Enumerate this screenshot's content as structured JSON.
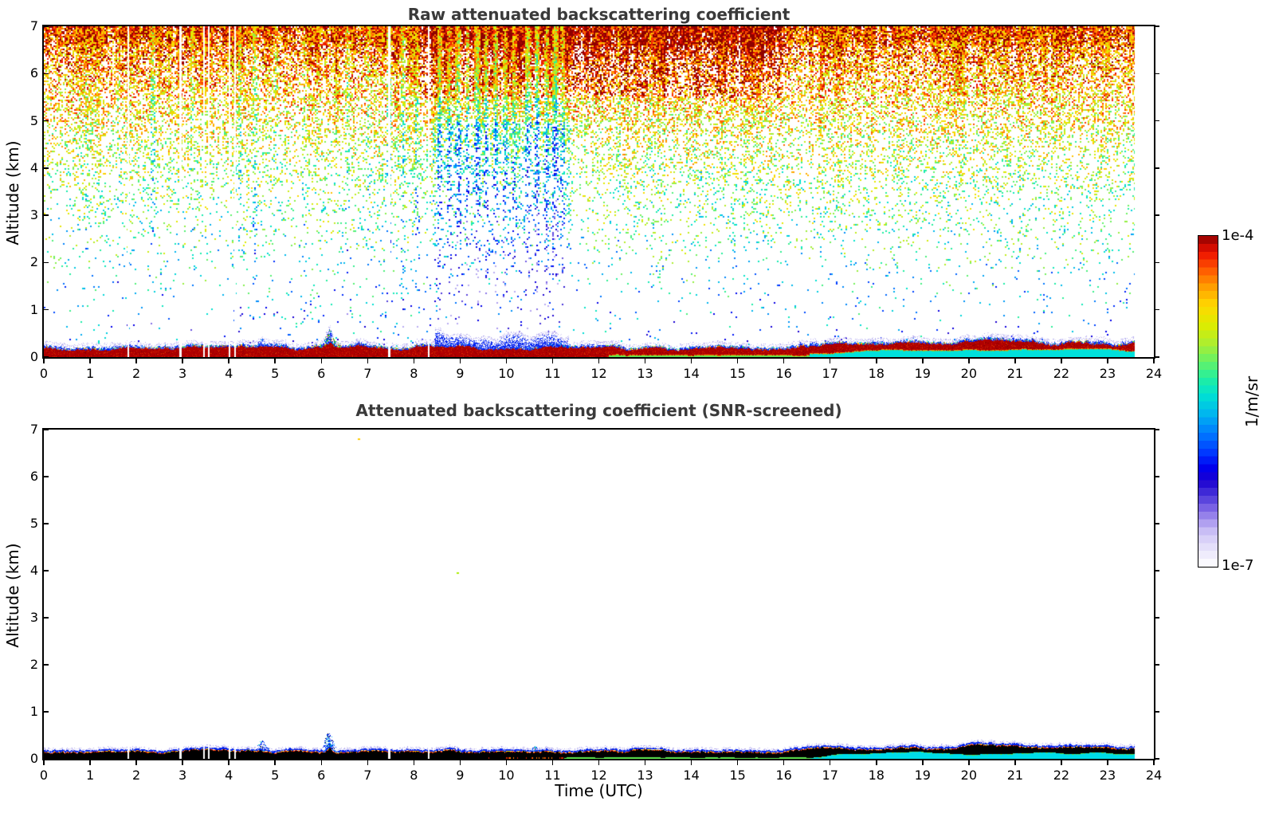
{
  "figure": {
    "background": "#ffffff",
    "title_color": "#3a3a3a",
    "panels": [
      {
        "id": "raw",
        "title": "Raw attenuated backscattering coefficient",
        "ylabel": "Altitude (km)",
        "xlabel": "",
        "x_tick_labels": [
          "0",
          "1",
          "2",
          "3",
          "4",
          "5",
          "6",
          "7",
          "8",
          "9",
          "10",
          "11",
          "12",
          "13",
          "14",
          "15",
          "16",
          "17",
          "18",
          "19",
          "20",
          "21",
          "22",
          "23",
          "24"
        ],
        "y_tick_labels": [
          "0",
          "1",
          "2",
          "3",
          "4",
          "5",
          "6",
          "7"
        ]
      },
      {
        "id": "screened",
        "title": "Attenuated backscattering coefficient (SNR-screened)",
        "ylabel": "Altitude (km)",
        "xlabel": "Time (UTC)",
        "x_tick_labels": [
          "0",
          "1",
          "2",
          "3",
          "4",
          "5",
          "6",
          "7",
          "8",
          "9",
          "10",
          "11",
          "12",
          "13",
          "14",
          "15",
          "16",
          "17",
          "18",
          "19",
          "20",
          "21",
          "22",
          "23",
          "24"
        ],
        "y_tick_labels": [
          "0",
          "1",
          "2",
          "3",
          "4",
          "5",
          "6",
          "7"
        ]
      }
    ],
    "colorbar": {
      "max_label": "1e-4",
      "min_label": "1e-7",
      "units": "1/m/sr",
      "scale": "log",
      "n_bands": 42
    }
  },
  "chart_data": [
    {
      "type": "heatmap",
      "title": "Raw attenuated backscattering coefficient",
      "xlabel": "Time (UTC)",
      "ylabel": "Altitude (km)",
      "xlim": [
        0,
        24
      ],
      "ylim": [
        0,
        7
      ],
      "value_range": [
        "1e-7",
        "1e-4"
      ],
      "value_units": "1/m/sr",
      "color_scale": "log",
      "data_time_end_utc": 23.58,
      "data_gaps_utc": [
        [
          1.83,
          0.04
        ],
        [
          2.94,
          0.05
        ],
        [
          3.47,
          0.03
        ],
        [
          3.56,
          0.03
        ],
        [
          4.02,
          0.04
        ],
        [
          4.14,
          0.02
        ],
        [
          7.46,
          0.05
        ],
        [
          8.33,
          0.04
        ]
      ],
      "description": "Raw lidar attenuated backscatter: dense speckle noise aloft (yellow/green with orange-red near 7 km, strongest 8-16 UTC), fading to sparse cyan/blue specks below 3 km; blue vertical noise streaks 8.4-11.4 UTC reaching low altitude; strong dark-red aerosol surface layer 0-0.25 km all day, rising to ~0.35 km after 16.5 UTC with cyan sub-layer beneath; thin green sub-layer 12.2-16.5 UTC; green speckle plume near 6.2 UTC up to 0.55 km; blue speckle bump near 4.7 UTC.",
      "noise_field": {
        "base_density_at_7km": 0.9,
        "density_exponent": 2.7,
        "density_floor": 0.012,
        "top_band_boost": 0.18,
        "warm_band_utc": [
          8,
          16
        ],
        "low_level_speck_band_utc": [
          4.2,
          8.4
        ],
        "cool_region_utc": [
          8.4,
          11.4
        ],
        "blue_streaks": [
          [
            0.9,
            0.03,
            0.25
          ],
          [
            1.6,
            0.03,
            0.25
          ],
          [
            2.35,
            0.05,
            0.45
          ],
          [
            3.2,
            0.04,
            0.3
          ],
          [
            4.22,
            0.05,
            0.4
          ],
          [
            4.55,
            0.05,
            0.45
          ],
          [
            5.0,
            0.04,
            0.35
          ],
          [
            5.6,
            0.04,
            0.3
          ],
          [
            6.55,
            0.05,
            0.4
          ],
          [
            7.0,
            0.04,
            0.3
          ],
          [
            7.45,
            0.06,
            0.55
          ],
          [
            7.75,
            0.05,
            0.45
          ],
          [
            8.05,
            0.05,
            0.5
          ],
          [
            8.55,
            0.06,
            0.65
          ],
          [
            8.75,
            0.05,
            0.55
          ],
          [
            8.95,
            0.06,
            0.75
          ],
          [
            9.15,
            0.05,
            0.65
          ],
          [
            9.35,
            0.06,
            0.75
          ],
          [
            9.55,
            0.05,
            0.6
          ],
          [
            9.75,
            0.06,
            0.65
          ],
          [
            9.95,
            0.05,
            0.55
          ],
          [
            10.15,
            0.05,
            0.5
          ],
          [
            10.45,
            0.06,
            0.75
          ],
          [
            10.65,
            0.06,
            0.85
          ],
          [
            10.85,
            0.05,
            0.65
          ],
          [
            11.05,
            0.06,
            0.85
          ],
          [
            11.2,
            0.05,
            0.55
          ],
          [
            12.4,
            0.04,
            0.3
          ],
          [
            13.1,
            0.04,
            0.3
          ],
          [
            14.2,
            0.03,
            0.25
          ]
        ]
      },
      "surface_layer": {
        "core_color": "#b00000",
        "core_dark": "#8a0000",
        "core_bright": "#d42a00",
        "under_green": "#5ce24e",
        "under_cyan": "#00e0dc",
        "blue_fringe": "#0022ee",
        "base_top_km": 0.19,
        "late_rise_start_utc": 16.25,
        "late_rise_km": 0.075,
        "green_sublayer_utc": [
          12.2,
          16.55
        ],
        "cyan_sublayer_start_utc": 16.55,
        "bump_utc": 6.17,
        "bump_km": 0.1,
        "blue_bump_utc": 4.72,
        "dense_blue_fringe_utc": [
          8.45,
          11.35
        ]
      }
    },
    {
      "type": "heatmap",
      "title": "Attenuated backscattering coefficient (SNR-screened)",
      "xlabel": "Time (UTC)",
      "ylabel": "Altitude (km)",
      "xlim": [
        0,
        24
      ],
      "ylim": [
        0,
        7
      ],
      "value_range": [
        "1e-7",
        "1e-4"
      ],
      "value_units": "1/m/sr",
      "color_scale": "log",
      "data_time_end_utc": 23.58,
      "data_gaps_utc": [
        [
          1.83,
          0.04
        ],
        [
          2.94,
          0.05
        ],
        [
          3.47,
          0.03
        ],
        [
          3.56,
          0.03
        ],
        [
          4.02,
          0.04
        ],
        [
          4.14,
          0.02
        ],
        [
          7.46,
          0.05
        ],
        [
          8.33,
          0.04
        ]
      ],
      "description": "SNR-screened backscatter: clean white field with only the saturated surface layer retained (rendered black, 0-0.2 km, rising to ~0.4 km near 20-21 UTC), rainbow fringe (red/orange/yellow/green/cyan) at its top edge, solid blue cap with pale lavender specks above; green sub-layer 11.3-16.5 UTC and cyan sub-layer after 16.5 UTC; small blue cloud blobs near 4.7, 6.15 and 10.6 UTC; two isolated stray pixels aloft.",
      "surface_layer": {
        "core_color": "#000000",
        "under_green": "#5ce24e",
        "under_cyan": "#00dce8",
        "blue_band": "#0022ee",
        "base_top_km": 0.16,
        "late_rise_start_utc": 16.3,
        "late_rise_km": 0.06,
        "green_sublayer_utc": [
          11.25,
          16.55
        ],
        "cyan_sublayer_start_utc": 16.55,
        "bump_utc": 6.17,
        "bump_km": 0.09,
        "peak_utc": 20.25,
        "peak_km": 0.07,
        "red_speck_bottom_utc": [
          9.6,
          12.4
        ]
      },
      "cloud_blobs": [
        [
          4.72,
          0.13,
          0.4
        ],
        [
          6.15,
          0.14,
          0.55
        ],
        [
          10.62,
          0.1,
          0.28
        ]
      ],
      "stray_pixels": [
        {
          "t": 6.78,
          "z": 6.81,
          "color": "#ffcc00"
        },
        {
          "t": 8.93,
          "z": 3.97,
          "color": "#aaee00"
        }
      ]
    }
  ],
  "palette_stops": [
    [
      0.0,
      "#ffffff"
    ],
    [
      0.05,
      "#e9e5fb"
    ],
    [
      0.1,
      "#cfc6f6"
    ],
    [
      0.14,
      "#a795ee"
    ],
    [
      0.18,
      "#7760e4"
    ],
    [
      0.22,
      "#4430d8"
    ],
    [
      0.26,
      "#1b00d0"
    ],
    [
      0.3,
      "#0000ee"
    ],
    [
      0.34,
      "#0033ff"
    ],
    [
      0.4,
      "#0077ff"
    ],
    [
      0.46,
      "#00b4f0"
    ],
    [
      0.52,
      "#00e2d2"
    ],
    [
      0.57,
      "#22efa0"
    ],
    [
      0.62,
      "#66f266"
    ],
    [
      0.67,
      "#a8ee33"
    ],
    [
      0.73,
      "#ddec00"
    ],
    [
      0.79,
      "#ffd800"
    ],
    [
      0.85,
      "#ff9900"
    ],
    [
      0.9,
      "#ff5500"
    ],
    [
      0.95,
      "#ee1100"
    ],
    [
      1.0,
      "#8f0000"
    ]
  ]
}
